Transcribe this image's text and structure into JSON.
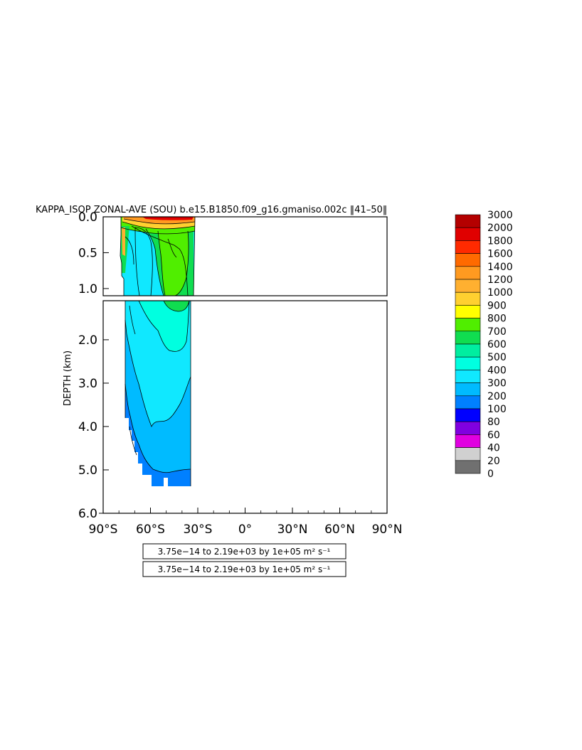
{
  "chart_data": {
    "type": "heatmap",
    "title": "KAPPA_ISOP ZONAL-AVE (SOU) b.e15.B1850.f09_g16.gmaniso.002c ‖41–50‖",
    "ylabel": "DEPTH (km)",
    "xlabel": "",
    "x_ticks": [
      "90°S",
      "60°S",
      "30°S",
      "0°",
      "30°N",
      "60°N",
      "90°N"
    ],
    "x_tick_values": [
      -90,
      -60,
      -30,
      0,
      30,
      60,
      90
    ],
    "xlim": [
      -90,
      90
    ],
    "y_ticks_upper": [
      "0.0",
      "0.5",
      "1.0"
    ],
    "y_tick_values_upper": [
      0,
      0.5,
      1.0
    ],
    "ylim_upper": [
      0,
      1.1
    ],
    "y_ticks_lower": [
      "2.0",
      "3.0",
      "4.0",
      "5.0",
      "6.0"
    ],
    "y_tick_values_lower": [
      2,
      3,
      4,
      5,
      6
    ],
    "ylim_lower": [
      1.1,
      6.0
    ],
    "ranges": [
      "3.75e−14 to 2.19e+03 by 1e+05 m² s⁻¹",
      "3.75e−14 to 2.19e+03 by 1e+05 m² s⁻¹"
    ],
    "colorbar": {
      "labels": [
        "3000",
        "2000",
        "1800",
        "1600",
        "1400",
        "1200",
        "1000",
        "900",
        "800",
        "700",
        "600",
        "500",
        "400",
        "300",
        "200",
        "100",
        "80",
        "60",
        "40",
        "20",
        "0"
      ],
      "colors": [
        "#b40000",
        "#e00000",
        "#ff2a00",
        "#ff6a00",
        "#ff9a20",
        "#ffb030",
        "#ffd030",
        "#ffff00",
        "#50ee00",
        "#10dd50",
        "#00eea0",
        "#00ffe0",
        "#10e8ff",
        "#00bbff",
        "#0080ff",
        "#0000ff",
        "#8000e0",
        "#e000e0",
        "#d0d0d0",
        "#707070"
      ]
    },
    "upper_panel": {
      "x_extent": [
        -78,
        -31
      ],
      "bands": [
        {
          "level": 500,
          "lat": [
            -76,
            -31
          ],
          "depth": [
            0,
            1.1
          ]
        },
        {
          "level": 600,
          "lat": [
            -62,
            -32
          ],
          "depth": [
            0.05,
            1.1
          ]
        },
        {
          "level": 700,
          "lat": [
            -55,
            -35
          ],
          "depth": [
            0.3,
            1.1
          ]
        }
      ],
      "surface_maximum": {
        "level": 1200,
        "lat": [
          -78,
          -31
        ],
        "depth": [
          0,
          0.12
        ]
      }
    },
    "lower_panel": {
      "x_extent": [
        -76,
        -34
      ],
      "bands": [
        {
          "level": 400,
          "lat": [
            -76,
            -34
          ],
          "depth": [
            1.1,
            3.8
          ]
        },
        {
          "level": 500,
          "lat": [
            -60,
            -36
          ],
          "depth": [
            1.1,
            2.3
          ]
        },
        {
          "level": 600,
          "lat": [
            -50,
            -38
          ],
          "depth": [
            1.1,
            1.6
          ]
        },
        {
          "level": 300,
          "lat": [
            -76,
            -34
          ],
          "depth": [
            3.0,
            5.1
          ]
        },
        {
          "level": 200,
          "lat": [
            -64,
            -34
          ],
          "depth": [
            5.0,
            5.4
          ]
        }
      ],
      "deepest_depth": 5.4
    }
  }
}
